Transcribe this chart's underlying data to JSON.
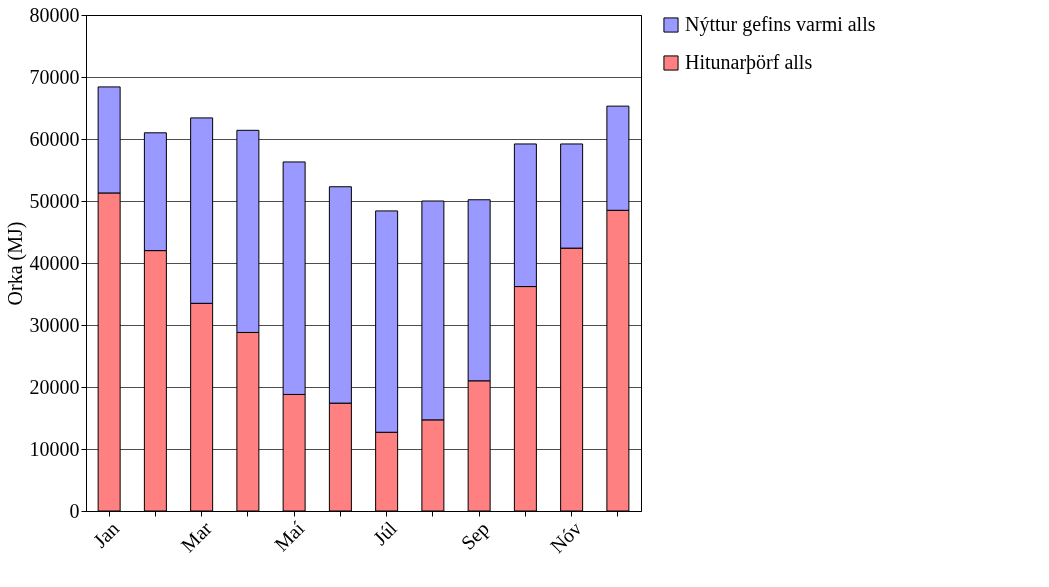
{
  "chart_data": {
    "type": "bar",
    "stacked": true,
    "ylabel": "Orka (MJ)",
    "categories": [
      "Jan",
      null,
      "Mar",
      null,
      "Maí",
      null,
      "Júl",
      null,
      "Sep",
      null,
      "Nóv",
      null
    ],
    "series": [
      {
        "name": "Hitunarþörf alls",
        "color": "#ff8080",
        "values": [
          51300,
          42000,
          33500,
          28800,
          18800,
          17400,
          12700,
          14700,
          21000,
          36200,
          42400,
          48500
        ]
      },
      {
        "name": "Nýttur gefins varmi alls",
        "color": "#9999ff",
        "values": [
          17100,
          19000,
          29900,
          32600,
          37500,
          34900,
          35700,
          35300,
          29200,
          23000,
          16800,
          16800
        ]
      }
    ],
    "ylim": [
      0,
      80000
    ],
    "yticks": [
      0,
      10000,
      20000,
      30000,
      40000,
      50000,
      60000,
      70000,
      80000
    ],
    "grid": "y",
    "legend": "right"
  }
}
